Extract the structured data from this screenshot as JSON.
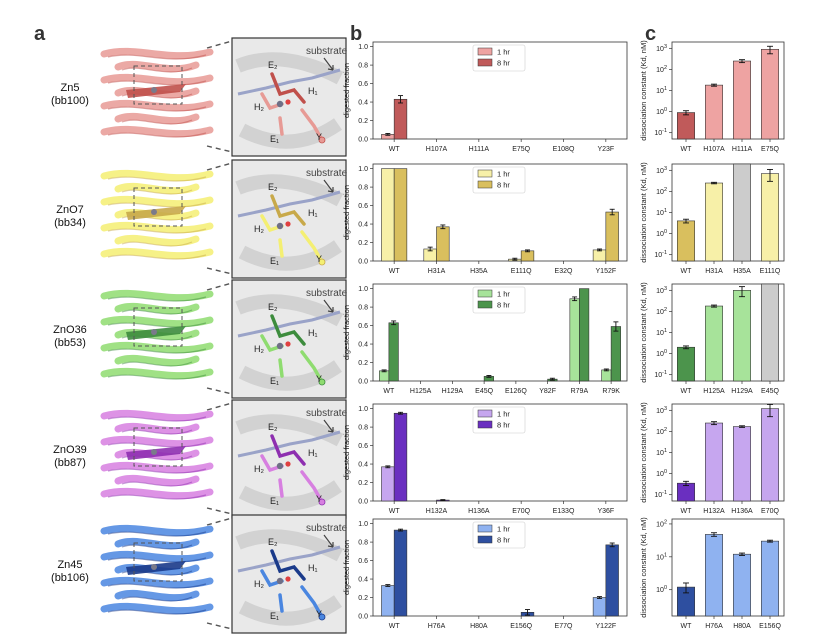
{
  "panel_labels": [
    "a",
    "b",
    "c"
  ],
  "rows": [
    {
      "name": "Zn5",
      "code": "(bb100)",
      "color": "#e79a95",
      "dark": "#c0504b",
      "residues": [
        "E₂",
        "H₁",
        "H₂",
        "E₁",
        "Y"
      ],
      "substrate": "substrate"
    },
    {
      "name": "ZnO7",
      "code": "(bb34)",
      "color": "#f4ef72",
      "dark": "#c8a94a",
      "residues": [
        "E₂",
        "H₁",
        "H₂",
        "E₁",
        "Y"
      ],
      "substrate": "substrate"
    },
    {
      "name": "ZnO36",
      "code": "(bb53)",
      "color": "#8fdc70",
      "dark": "#3d8c3d",
      "residues": [
        "E₂",
        "H₁",
        "H₂",
        "E₁",
        "Y"
      ],
      "substrate": "substrate"
    },
    {
      "name": "ZnO39",
      "code": "(bb87)",
      "color": "#d77fe0",
      "dark": "#8e2fb0",
      "residues": [
        "E₂",
        "H₁",
        "H₂",
        "E₁",
        "Y"
      ],
      "substrate": "substrate"
    },
    {
      "name": "Zn45",
      "code": "(bb106)",
      "color": "#4a86e0",
      "dark": "#1a3a8a",
      "residues": [
        "E₂",
        "H₁",
        "H₂",
        "E₁",
        "Y"
      ],
      "substrate": "substrate"
    }
  ],
  "chart_data": [
    {
      "type": "bar",
      "panel": "b",
      "ylabel": "digested fraction",
      "ylim": [
        0,
        1.05
      ],
      "yticks": [
        "0.0",
        "0.2",
        "0.4",
        "0.6",
        "0.8",
        "1.0"
      ],
      "categories": [
        "WT",
        "H107A",
        "H111A",
        "E75Q",
        "E108Q",
        "Y23F"
      ],
      "series": [
        {
          "name": "1 hr",
          "color": "#eea3a2",
          "values": [
            0.05,
            0,
            0,
            0,
            0,
            0
          ],
          "err": [
            0.01,
            0,
            0,
            0,
            0,
            0
          ]
        },
        {
          "name": "8 hr",
          "color": "#c05a5a",
          "values": [
            0.43,
            0,
            0,
            0,
            0,
            0
          ],
          "err": [
            0.04,
            0,
            0,
            0,
            0,
            0
          ]
        }
      ]
    },
    {
      "type": "bar",
      "panel": "b",
      "ylabel": "digested fraction",
      "ylim": [
        0,
        1.05
      ],
      "yticks": [
        "0.0",
        "0.2",
        "0.4",
        "0.6",
        "0.8",
        "1.0"
      ],
      "categories": [
        "WT",
        "H31A",
        "H35A",
        "E111Q",
        "E32Q",
        "Y152F"
      ],
      "series": [
        {
          "name": "1 hr",
          "color": "#f7f0a8",
          "values": [
            1.0,
            0.13,
            0,
            0.02,
            0,
            0.12
          ],
          "err": [
            0,
            0.02,
            0,
            0.01,
            0,
            0.01
          ]
        },
        {
          "name": "8 hr",
          "color": "#d9bf5e",
          "values": [
            1.0,
            0.37,
            0,
            0.11,
            0,
            0.53
          ],
          "err": [
            0,
            0.02,
            0,
            0.01,
            0,
            0.03
          ]
        }
      ]
    },
    {
      "type": "bar",
      "panel": "b",
      "ylabel": "digested fraction",
      "ylim": [
        0,
        1.05
      ],
      "yticks": [
        "0.0",
        "0.2",
        "0.4",
        "0.6",
        "0.8",
        "1.0"
      ],
      "categories": [
        "WT",
        "H125A",
        "H129A",
        "E45Q",
        "E126Q",
        "Y82F",
        "R79A",
        "R79K"
      ],
      "series": [
        {
          "name": "1 hr",
          "color": "#a7e39a",
          "values": [
            0.11,
            0,
            0,
            0,
            0,
            0,
            0.89,
            0.12
          ],
          "err": [
            0.01,
            0,
            0,
            0,
            0,
            0,
            0.02,
            0.01
          ]
        },
        {
          "name": "8 hr",
          "color": "#4c944c",
          "values": [
            0.63,
            0,
            0,
            0.05,
            0,
            0.02,
            1.0,
            0.59
          ],
          "err": [
            0.02,
            0,
            0,
            0.01,
            0,
            0.01,
            0,
            0.05
          ]
        }
      ]
    },
    {
      "type": "bar",
      "panel": "b",
      "ylabel": "digested fraction",
      "ylim": [
        0,
        1.05
      ],
      "yticks": [
        "0.0",
        "0.2",
        "0.4",
        "0.6",
        "0.8",
        "1.0"
      ],
      "categories": [
        "WT",
        "H132A",
        "H136A",
        "E70Q",
        "E133Q",
        "Y36F"
      ],
      "series": [
        {
          "name": "1 hr",
          "color": "#c6a6ef",
          "values": [
            0.37,
            0,
            0,
            0,
            0,
            0
          ],
          "err": [
            0.01,
            0,
            0,
            0,
            0,
            0
          ]
        },
        {
          "name": "8 hr",
          "color": "#6a2fc0",
          "values": [
            0.95,
            0.01,
            0,
            0,
            0,
            0
          ],
          "err": [
            0.01,
            0.005,
            0,
            0,
            0,
            0
          ]
        }
      ]
    },
    {
      "type": "bar",
      "panel": "b",
      "ylabel": "digested fraction",
      "ylim": [
        0,
        1.05
      ],
      "yticks": [
        "0.0",
        "0.2",
        "0.4",
        "0.6",
        "0.8",
        "1.0"
      ],
      "categories": [
        "WT",
        "H76A",
        "H80A",
        "E156Q",
        "E77Q",
        "Y122F"
      ],
      "series": [
        {
          "name": "1 hr",
          "color": "#8fb2f0",
          "values": [
            0.33,
            0,
            0,
            0,
            0,
            0.2
          ],
          "err": [
            0.01,
            0,
            0,
            0,
            0,
            0.01
          ]
        },
        {
          "name": "8 hr",
          "color": "#2e4fa0",
          "values": [
            0.93,
            0,
            0,
            0.04,
            0,
            0.77
          ],
          "err": [
            0.01,
            0,
            0,
            0.03,
            0,
            0.02
          ]
        }
      ]
    },
    {
      "type": "bar",
      "panel": "c",
      "ylabel": "dissociation constant (Kd, nM)",
      "log": true,
      "yrange_exp": [
        -1.3,
        3.3
      ],
      "ytick_exps": [
        -1,
        0,
        1,
        2,
        3
      ],
      "categories": [
        "WT",
        "H107A",
        "H111A",
        "E75Q"
      ],
      "values": [
        0.9,
        18,
        250,
        900
      ],
      "err": [
        0.2,
        2,
        40,
        350
      ],
      "colors": [
        "#c05a5a",
        "#eea3a2",
        "#eea3a2",
        "#eea3a2"
      ],
      "capped": [
        false,
        false,
        false,
        false
      ]
    },
    {
      "type": "bar",
      "panel": "c",
      "ylabel": "dissociation constant (Kd, nM)",
      "log": true,
      "yrange_exp": [
        -1.3,
        3.3
      ],
      "ytick_exps": [
        -1,
        0,
        1,
        2,
        3
      ],
      "categories": [
        "WT",
        "H31A",
        "H35A",
        "E111Q"
      ],
      "values": [
        4,
        250,
        2000,
        700
      ],
      "err": [
        0.8,
        20,
        0,
        400
      ],
      "colors": [
        "#d9bf5e",
        "#f7f0a8",
        "#cccccc",
        "#f7f0a8"
      ],
      "capped": [
        false,
        false,
        true,
        false
      ]
    },
    {
      "type": "bar",
      "panel": "c",
      "ylabel": "dissociation constant (Kd, nM)",
      "log": true,
      "yrange_exp": [
        -1.3,
        3.3
      ],
      "ytick_exps": [
        -1,
        0,
        1,
        2,
        3
      ],
      "categories": [
        "WT",
        "H125A",
        "H129A",
        "E45Q"
      ],
      "values": [
        2,
        180,
        1000,
        2000
      ],
      "err": [
        0.3,
        20,
        500,
        0
      ],
      "colors": [
        "#4c944c",
        "#a7e39a",
        "#a7e39a",
        "#cccccc"
      ],
      "capped": [
        false,
        false,
        false,
        true
      ]
    },
    {
      "type": "bar",
      "panel": "c",
      "ylabel": "dissociation constant (Kd, nM)",
      "log": true,
      "yrange_exp": [
        -1.3,
        3.3
      ],
      "ytick_exps": [
        -1,
        0,
        1,
        2,
        3
      ],
      "categories": [
        "WT",
        "H132A",
        "H136A",
        "E70Q"
      ],
      "values": [
        0.35,
        250,
        170,
        1200
      ],
      "err": [
        0.08,
        40,
        15,
        700
      ],
      "colors": [
        "#6a2fc0",
        "#c6a6ef",
        "#c6a6ef",
        "#c6a6ef"
      ],
      "capped": [
        false,
        false,
        false,
        false
      ]
    },
    {
      "type": "bar",
      "panel": "c",
      "ylabel": "dissociation constant (Kd, nM)",
      "log": true,
      "yrange_exp": [
        -0.8,
        2.15
      ],
      "ytick_exps": [
        0,
        1,
        2
      ],
      "categories": [
        "WT",
        "H76A",
        "H80A",
        "E156Q"
      ],
      "values": [
        1.2,
        48,
        12,
        30
      ],
      "err": [
        0.4,
        6,
        1,
        2
      ],
      "colors": [
        "#2e4fa0",
        "#8fb2f0",
        "#8fb2f0",
        "#8fb2f0"
      ],
      "capped": [
        false,
        false,
        false,
        false
      ]
    }
  ]
}
